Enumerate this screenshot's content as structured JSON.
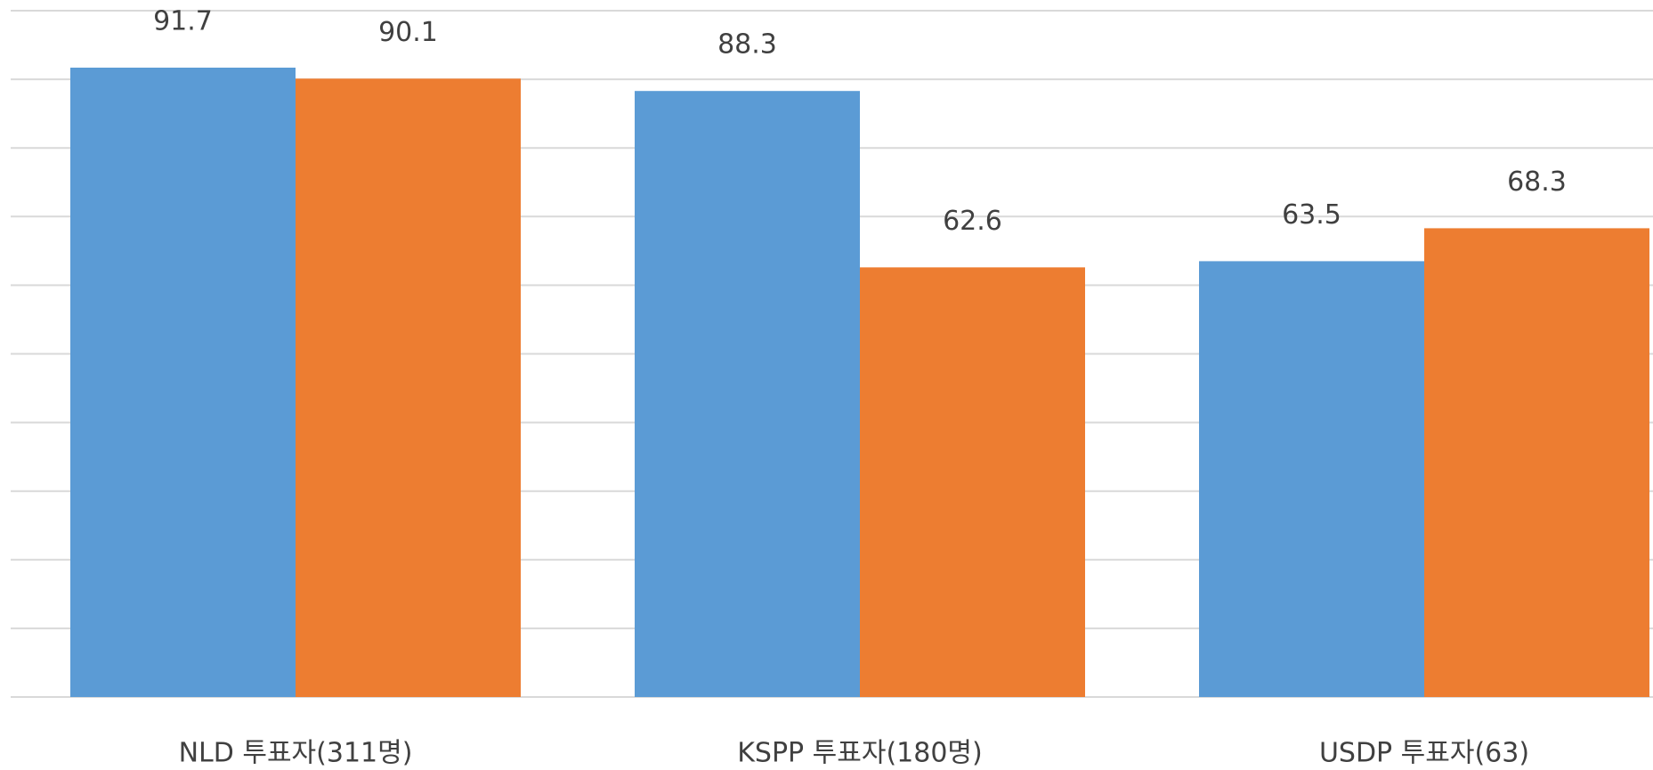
{
  "chart_data": {
    "type": "bar",
    "categories": [
      "NLD 투표자(311명)",
      "KSPP 투표자(180명)",
      "USDP 투표자(63)"
    ],
    "series": [
      {
        "color": "#5b9bd5",
        "values": [
          91.7,
          88.3,
          63.5
        ]
      },
      {
        "color": "#ed7d31",
        "values": [
          90.1,
          62.6,
          68.3
        ]
      }
    ],
    "ylim": [
      0,
      100
    ],
    "yticks": [
      0,
      10,
      20,
      30,
      40,
      50,
      60,
      70,
      80,
      90,
      100
    ],
    "grid": true
  }
}
